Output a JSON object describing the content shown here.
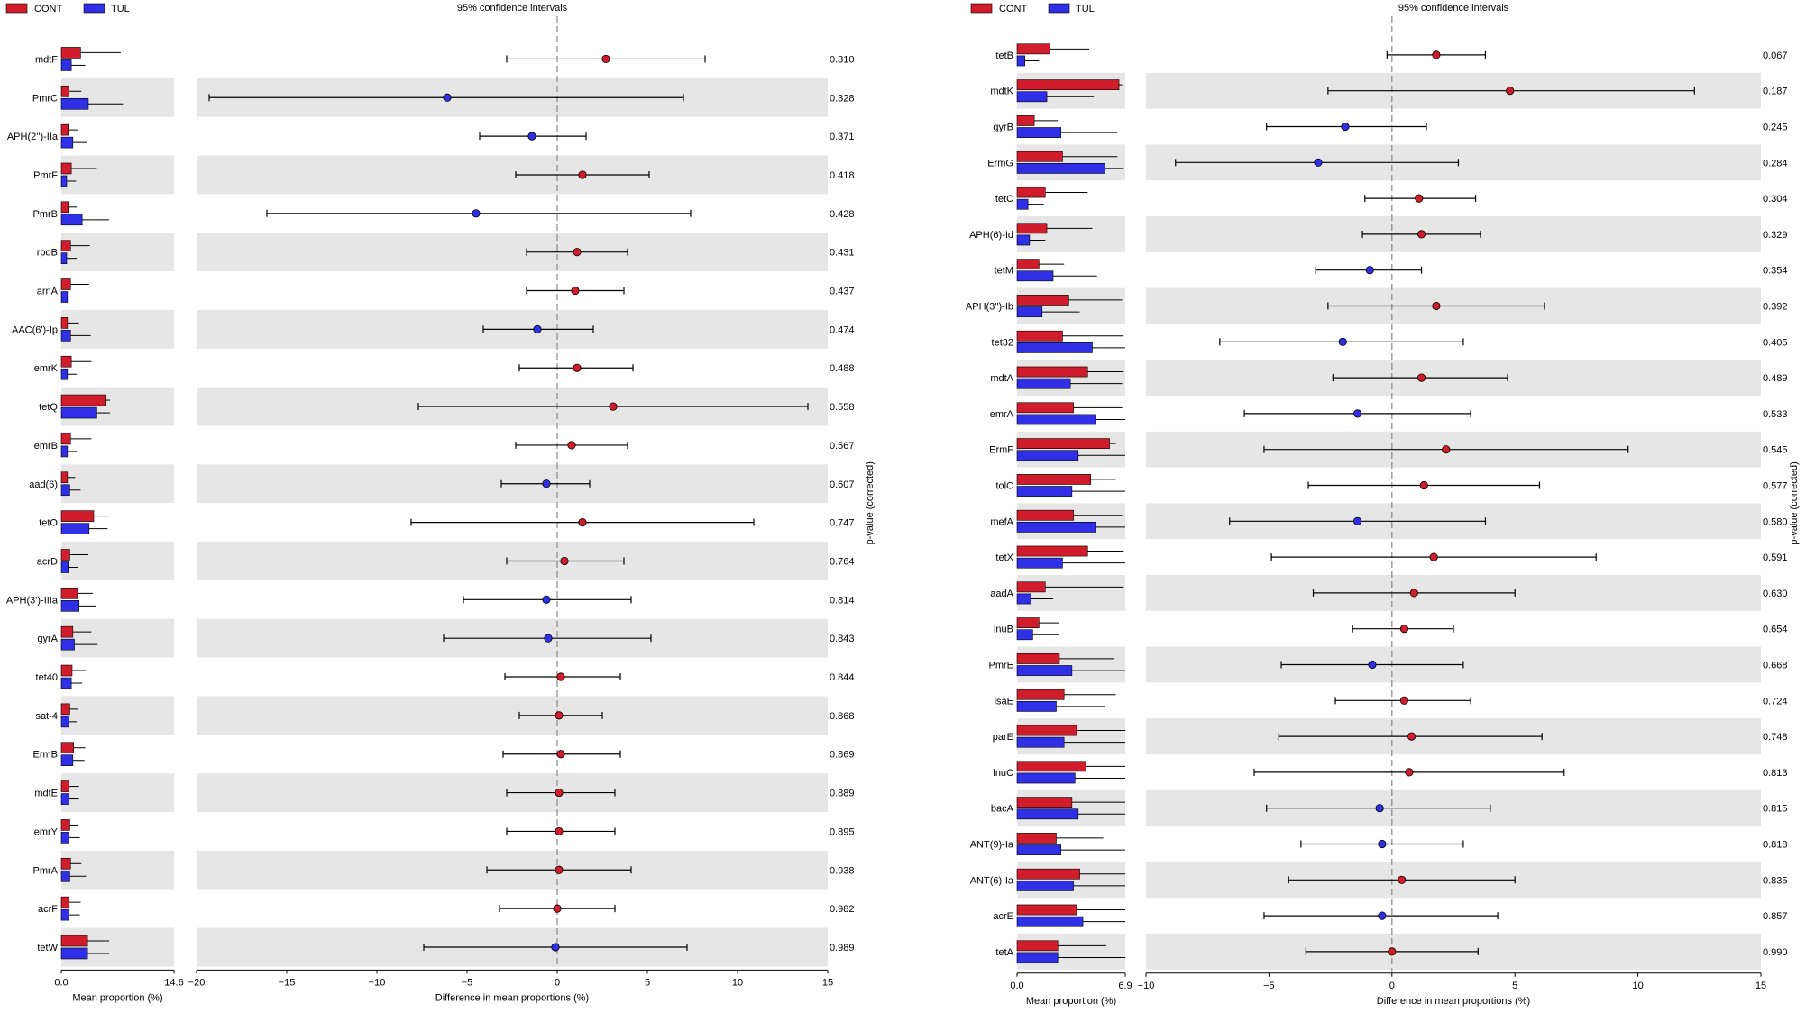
{
  "legend": {
    "cont": "CONT",
    "tul": "TUL"
  },
  "colors": {
    "cont": "#d01c2b",
    "tul": "#2f2fe6",
    "stripe": "#e6e6e6",
    "zero_line": "#888888"
  },
  "chart_data": [
    {
      "type": "extended-error-bar",
      "title": "95% confidence intervals",
      "xlabel_bar": "Mean proportion (%)",
      "xlabel_diff": "Difference in mean proportions (%)",
      "ylabel_p": "p-value (corrected)",
      "series": [
        "CONT",
        "TUL"
      ],
      "bar_xlim": [
        0,
        14.6
      ],
      "bar_ticks": [
        "0.0",
        "14.6"
      ],
      "diff_xlim": [
        -20,
        15
      ],
      "diff_ticks": [
        -20,
        -15,
        -10,
        -5,
        0,
        5,
        10,
        15
      ],
      "rows": [
        {
          "label": "mdtF",
          "cont": 2.5,
          "cont_sd": 5.2,
          "tul": 1.3,
          "tul_sd": 1.8,
          "diff": 2.7,
          "ci": [
            -2.8,
            8.2
          ],
          "p": "0.310"
        },
        {
          "label": "PmrC",
          "cont": 1.0,
          "cont_sd": 1.6,
          "tul": 3.5,
          "tul_sd": 4.5,
          "diff": -6.1,
          "ci": [
            -19.3,
            7.0
          ],
          "p": "0.328"
        },
        {
          "label": "APH(2'')-IIa",
          "cont": 0.9,
          "cont_sd": 1.3,
          "tul": 1.5,
          "tul_sd": 1.8,
          "diff": -1.4,
          "ci": [
            -4.3,
            1.6
          ],
          "p": "0.371"
        },
        {
          "label": "PmrF",
          "cont": 1.3,
          "cont_sd": 3.3,
          "tul": 0.7,
          "tul_sd": 1.2,
          "diff": 1.4,
          "ci": [
            -2.3,
            5.1
          ],
          "p": "0.418"
        },
        {
          "label": "PmrB",
          "cont": 0.9,
          "cont_sd": 1.1,
          "tul": 2.7,
          "tul_sd": 3.5,
          "diff": -4.5,
          "ci": [
            -16.1,
            7.4
          ],
          "p": "0.428"
        },
        {
          "label": "rpoB",
          "cont": 1.2,
          "cont_sd": 2.5,
          "tul": 0.7,
          "tul_sd": 1.3,
          "diff": 1.1,
          "ci": [
            -1.7,
            3.9
          ],
          "p": "0.431"
        },
        {
          "label": "arnA",
          "cont": 1.2,
          "cont_sd": 2.4,
          "tul": 0.8,
          "tul_sd": 1.2,
          "diff": 1.0,
          "ci": [
            -1.7,
            3.7
          ],
          "p": "0.437"
        },
        {
          "label": "AAC(6')-Ip",
          "cont": 0.8,
          "cont_sd": 1.5,
          "tul": 1.2,
          "tul_sd": 2.6,
          "diff": -1.1,
          "ci": [
            -4.1,
            2.0
          ],
          "p": "0.474"
        },
        {
          "label": "emrK",
          "cont": 1.3,
          "cont_sd": 2.6,
          "tul": 0.8,
          "tul_sd": 1.2,
          "diff": 1.1,
          "ci": [
            -2.1,
            4.2
          ],
          "p": "0.488"
        },
        {
          "label": "tetQ",
          "cont": 5.8,
          "cont_sd": 0.5,
          "tul": 4.6,
          "tul_sd": 1.7,
          "diff": 3.1,
          "ci": [
            -7.7,
            13.9
          ],
          "p": "0.558"
        },
        {
          "label": "emrB",
          "cont": 1.2,
          "cont_sd": 2.7,
          "tul": 0.8,
          "tul_sd": 1.2,
          "diff": 0.8,
          "ci": [
            -2.3,
            3.9
          ],
          "p": "0.567"
        },
        {
          "label": "aad(6)",
          "cont": 0.8,
          "cont_sd": 1.0,
          "tul": 1.1,
          "tul_sd": 1.4,
          "diff": -0.6,
          "ci": [
            -3.1,
            1.8
          ],
          "p": "0.607"
        },
        {
          "label": "tetO",
          "cont": 4.2,
          "cont_sd": 2.0,
          "tul": 3.6,
          "tul_sd": 2.4,
          "diff": 1.4,
          "ci": [
            -8.1,
            10.9
          ],
          "p": "0.747"
        },
        {
          "label": "acrD",
          "cont": 1.1,
          "cont_sd": 2.4,
          "tul": 0.9,
          "tul_sd": 1.3,
          "diff": 0.4,
          "ci": [
            -2.8,
            3.7
          ],
          "p": "0.764"
        },
        {
          "label": "APH(3')-IIIa",
          "cont": 2.1,
          "cont_sd": 2.0,
          "tul": 2.3,
          "tul_sd": 2.2,
          "diff": -0.6,
          "ci": [
            -5.2,
            4.1
          ],
          "p": "0.814"
        },
        {
          "label": "gyrA",
          "cont": 1.5,
          "cont_sd": 2.4,
          "tul": 1.7,
          "tul_sd": 3.0,
          "diff": -0.5,
          "ci": [
            -6.3,
            5.2
          ],
          "p": "0.843"
        },
        {
          "label": "tet40",
          "cont": 1.4,
          "cont_sd": 1.8,
          "tul": 1.3,
          "tul_sd": 1.4,
          "diff": 0.2,
          "ci": [
            -2.9,
            3.5
          ],
          "p": "0.844"
        },
        {
          "label": "sat-4",
          "cont": 1.1,
          "cont_sd": 1.1,
          "tul": 1.0,
          "tul_sd": 1.0,
          "diff": 0.1,
          "ci": [
            -2.1,
            2.5
          ],
          "p": "0.868"
        },
        {
          "label": "ErmB",
          "cont": 1.6,
          "cont_sd": 1.5,
          "tul": 1.5,
          "tul_sd": 1.5,
          "diff": 0.2,
          "ci": [
            -3.0,
            3.5
          ],
          "p": "0.869"
        },
        {
          "label": "mdtE",
          "cont": 1.0,
          "cont_sd": 1.3,
          "tul": 1.0,
          "tul_sd": 1.3,
          "diff": 0.1,
          "ci": [
            -2.8,
            3.2
          ],
          "p": "0.889"
        },
        {
          "label": "emrY",
          "cont": 1.1,
          "cont_sd": 1.1,
          "tul": 1.0,
          "tul_sd": 1.4,
          "diff": 0.1,
          "ci": [
            -2.8,
            3.2
          ],
          "p": "0.895"
        },
        {
          "label": "PmrA",
          "cont": 1.2,
          "cont_sd": 1.4,
          "tul": 1.1,
          "tul_sd": 2.1,
          "diff": 0.1,
          "ci": [
            -3.9,
            4.1
          ],
          "p": "0.938"
        },
        {
          "label": "acrF",
          "cont": 1.0,
          "cont_sd": 1.5,
          "tul": 1.0,
          "tul_sd": 1.4,
          "diff": 0.0,
          "ci": [
            -3.2,
            3.2
          ],
          "p": "0.982"
        },
        {
          "label": "tetW",
          "cont": 3.4,
          "cont_sd": 2.8,
          "tul": 3.4,
          "tul_sd": 2.8,
          "diff": -0.1,
          "ci": [
            -7.4,
            7.2
          ],
          "p": "0.989"
        }
      ]
    },
    {
      "type": "extended-error-bar",
      "title": "95% confidence intervals",
      "xlabel_bar": "Mean proportion (%)",
      "xlabel_diff": "Difference in mean proportions (%)",
      "ylabel_p": "p-value (corrected)",
      "series": [
        "CONT",
        "TUL"
      ],
      "bar_xlim": [
        0,
        6.9
      ],
      "bar_ticks": [
        "0.0",
        "6.9"
      ],
      "diff_xlim": [
        -10,
        15
      ],
      "diff_ticks": [
        -10,
        -5,
        0,
        5,
        10,
        15
      ],
      "rows": [
        {
          "label": "tetB",
          "cont": 2.1,
          "cont_sd": 2.5,
          "tul": 0.5,
          "tul_sd": 0.9,
          "diff": 1.8,
          "ci": [
            -0.2,
            3.8
          ],
          "p": "0.067"
        },
        {
          "label": "mdtK",
          "cont": 6.5,
          "cont_sd": 0.2,
          "tul": 1.9,
          "tul_sd": 3.0,
          "diff": 4.8,
          "ci": [
            -2.6,
            12.3
          ],
          "p": "0.187"
        },
        {
          "label": "gyrB",
          "cont": 1.1,
          "cont_sd": 1.5,
          "tul": 2.8,
          "tul_sd": 3.6,
          "diff": -1.9,
          "ci": [
            -5.1,
            1.4
          ],
          "p": "0.245"
        },
        {
          "label": "ErmG",
          "cont": 2.9,
          "cont_sd": 3.5,
          "tul": 5.6,
          "tul_sd": 1.2,
          "diff": -3.0,
          "ci": [
            -8.8,
            2.7
          ],
          "p": "0.284"
        },
        {
          "label": "tetC",
          "cont": 1.8,
          "cont_sd": 2.7,
          "tul": 0.7,
          "tul_sd": 1.0,
          "diff": 1.1,
          "ci": [
            -1.1,
            3.4
          ],
          "p": "0.304"
        },
        {
          "label": "APH(6)-Id",
          "cont": 1.9,
          "cont_sd": 2.9,
          "tul": 0.8,
          "tul_sd": 1.0,
          "diff": 1.2,
          "ci": [
            -1.2,
            3.6
          ],
          "p": "0.329"
        },
        {
          "label": "tetM",
          "cont": 1.4,
          "cont_sd": 1.6,
          "tul": 2.3,
          "tul_sd": 2.8,
          "diff": -0.9,
          "ci": [
            -3.1,
            1.2
          ],
          "p": "0.354"
        },
        {
          "label": "APH(3'')-Ib",
          "cont": 3.3,
          "cont_sd": 3.4,
          "tul": 1.6,
          "tul_sd": 2.4,
          "diff": 1.8,
          "ci": [
            -2.6,
            6.2
          ],
          "p": "0.392"
        },
        {
          "label": "tet32",
          "cont": 2.9,
          "cont_sd": 3.9,
          "tul": 4.8,
          "tul_sd": 2.5,
          "diff": -2.0,
          "ci": [
            -7.0,
            2.9
          ],
          "p": "0.405"
        },
        {
          "label": "mdtA",
          "cont": 4.5,
          "cont_sd": 2.3,
          "tul": 3.4,
          "tul_sd": 3.3,
          "diff": 1.2,
          "ci": [
            -2.4,
            4.7
          ],
          "p": "0.489"
        },
        {
          "label": "emrA",
          "cont": 3.6,
          "cont_sd": 3.1,
          "tul": 5.0,
          "tul_sd": 2.2,
          "diff": -1.4,
          "ci": [
            -6.0,
            3.2
          ],
          "p": "0.533"
        },
        {
          "label": "ErmF",
          "cont": 5.9,
          "cont_sd": 0.4,
          "tul": 3.9,
          "tul_sd": 3.0,
          "diff": 2.2,
          "ci": [
            -5.2,
            9.6
          ],
          "p": "0.545"
        },
        {
          "label": "tolC",
          "cont": 4.7,
          "cont_sd": 1.6,
          "tul": 3.5,
          "tul_sd": 3.4,
          "diff": 1.3,
          "ci": [
            -3.4,
            6.0
          ],
          "p": "0.577"
        },
        {
          "label": "mefA",
          "cont": 3.6,
          "cont_sd": 3.1,
          "tul": 5.0,
          "tul_sd": 2.2,
          "diff": -1.4,
          "ci": [
            -6.6,
            3.8
          ],
          "p": "0.580"
        },
        {
          "label": "tetX",
          "cont": 4.5,
          "cont_sd": 2.3,
          "tul": 2.9,
          "tul_sd": 4.0,
          "diff": 1.7,
          "ci": [
            -4.9,
            8.3
          ],
          "p": "0.591"
        },
        {
          "label": "aadA",
          "cont": 1.8,
          "cont_sd": 5.0,
          "tul": 0.9,
          "tul_sd": 1.4,
          "diff": 0.9,
          "ci": [
            -3.2,
            5.0
          ],
          "p": "0.630"
        },
        {
          "label": "lnuB",
          "cont": 1.4,
          "cont_sd": 1.3,
          "tul": 1.0,
          "tul_sd": 1.7,
          "diff": 0.5,
          "ci": [
            -1.6,
            2.5
          ],
          "p": "0.654"
        },
        {
          "label": "PmrE",
          "cont": 2.7,
          "cont_sd": 3.5,
          "tul": 3.5,
          "tul_sd": 3.4,
          "diff": -0.8,
          "ci": [
            -4.5,
            2.9
          ],
          "p": "0.668"
        },
        {
          "label": "lsaE",
          "cont": 3.0,
          "cont_sd": 3.3,
          "tul": 2.5,
          "tul_sd": 3.1,
          "diff": 0.5,
          "ci": [
            -2.3,
            3.2
          ],
          "p": "0.724"
        },
        {
          "label": "parE",
          "cont": 3.8,
          "cont_sd": 3.1,
          "tul": 3.0,
          "tul_sd": 3.9,
          "diff": 0.8,
          "ci": [
            -4.6,
            6.1
          ],
          "p": "0.748"
        },
        {
          "label": "lnuC",
          "cont": 4.4,
          "cont_sd": 2.5,
          "tul": 3.7,
          "tul_sd": 3.2,
          "diff": 0.7,
          "ci": [
            -5.6,
            7.0
          ],
          "p": "0.813"
        },
        {
          "label": "bacA",
          "cont": 3.5,
          "cont_sd": 3.4,
          "tul": 3.9,
          "tul_sd": 3.0,
          "diff": -0.5,
          "ci": [
            -5.1,
            4.0
          ],
          "p": "0.815"
        },
        {
          "label": "ANT(9)-Ia",
          "cont": 2.5,
          "cont_sd": 3.0,
          "tul": 2.8,
          "tul_sd": 4.1,
          "diff": -0.4,
          "ci": [
            -3.7,
            2.9
          ],
          "p": "0.818"
        },
        {
          "label": "ANT(6)-Ia",
          "cont": 4.0,
          "cont_sd": 2.9,
          "tul": 3.6,
          "tul_sd": 3.3,
          "diff": 0.4,
          "ci": [
            -4.2,
            5.0
          ],
          "p": "0.835"
        },
        {
          "label": "acrE",
          "cont": 3.8,
          "cont_sd": 3.1,
          "tul": 4.2,
          "tul_sd": 2.7,
          "diff": -0.4,
          "ci": [
            -5.2,
            4.3
          ],
          "p": "0.857"
        },
        {
          "label": "tetA",
          "cont": 2.6,
          "cont_sd": 3.1,
          "tul": 2.6,
          "tul_sd": 4.3,
          "diff": 0.0,
          "ci": [
            -3.5,
            3.5
          ],
          "p": "0.990"
        }
      ]
    }
  ]
}
